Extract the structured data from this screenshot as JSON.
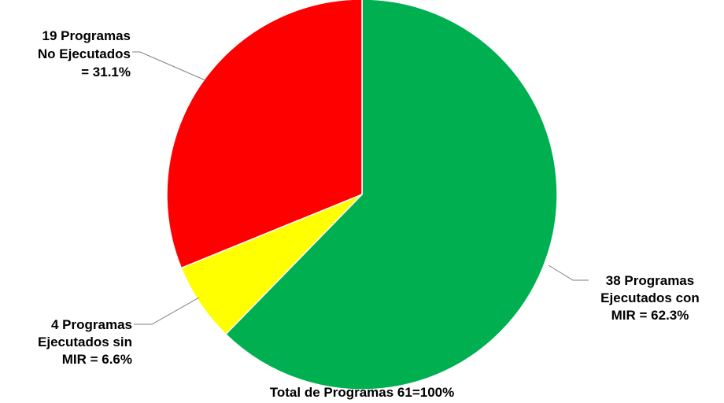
{
  "chart_data": {
    "type": "pie",
    "slices": [
      {
        "key": "ejecutados_con_mir",
        "label_lines": [
          "38 Programas",
          "Ejecutados con",
          "MIR = 62.3%"
        ],
        "count": 38,
        "percent": 62.3,
        "color": "#00B050"
      },
      {
        "key": "ejecutados_sin_mir",
        "label_lines": [
          "4 Programas",
          "Ejecutados sin",
          "MIR = 6.6%"
        ],
        "count": 4,
        "percent": 6.6,
        "color": "#FFFF00"
      },
      {
        "key": "no_ejecutados",
        "label_lines": [
          "19 Programas",
          "No Ejecutados",
          "= 31.1%"
        ],
        "count": 19,
        "percent": 31.1,
        "color": "#FF0000"
      }
    ],
    "total_label": "Total de Programas 61=100%",
    "start": "top (12 o'clock)",
    "direction": "clockwise"
  }
}
